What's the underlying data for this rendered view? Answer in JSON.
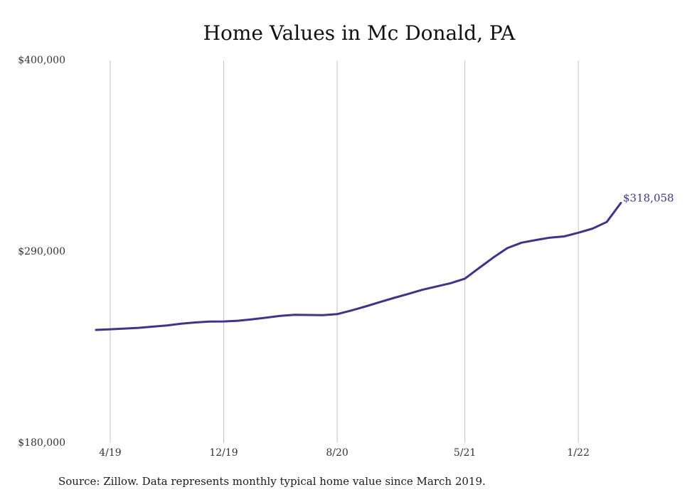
{
  "chart_data": {
    "type": "line",
    "title": "Home Values in Mc Donald, PA",
    "xlabel": "",
    "ylabel": "",
    "ylim": [
      180000,
      400000
    ],
    "y_ticks": [
      {
        "value": 400000,
        "label": "$400,000"
      },
      {
        "value": 290000,
        "label": "$290,000"
      },
      {
        "value": 180000,
        "label": "$180,000"
      }
    ],
    "x_ticks": [
      {
        "x": "2019-04",
        "label": "4/19"
      },
      {
        "x": "2019-12",
        "label": "12/19"
      },
      {
        "x": "2020-08",
        "label": "8/20"
      },
      {
        "x": "2021-05",
        "label": "5/21"
      },
      {
        "x": "2022-01",
        "label": "1/22"
      }
    ],
    "grid": {
      "vertical": true,
      "horizontal": false
    },
    "series": [
      {
        "name": "",
        "color": "#3b3494",
        "points": [
          {
            "x": "2019-03",
            "y": 245000
          },
          {
            "x": "2019-04",
            "y": 245400
          },
          {
            "x": "2019-05",
            "y": 245800
          },
          {
            "x": "2019-06",
            "y": 246200
          },
          {
            "x": "2019-07",
            "y": 246900
          },
          {
            "x": "2019-08",
            "y": 247600
          },
          {
            "x": "2019-09",
            "y": 248600
          },
          {
            "x": "2019-10",
            "y": 249300
          },
          {
            "x": "2019-11",
            "y": 249800
          },
          {
            "x": "2019-12",
            "y": 249900
          },
          {
            "x": "2020-01",
            "y": 250300
          },
          {
            "x": "2020-02",
            "y": 251100
          },
          {
            "x": "2020-03",
            "y": 252100
          },
          {
            "x": "2020-04",
            "y": 253100
          },
          {
            "x": "2020-05",
            "y": 253700
          },
          {
            "x": "2020-06",
            "y": 253600
          },
          {
            "x": "2020-07",
            "y": 253500
          },
          {
            "x": "2020-08",
            "y": 254100
          },
          {
            "x": "2020-09",
            "y": 256200
          },
          {
            "x": "2020-10",
            "y": 258500
          },
          {
            "x": "2020-11",
            "y": 261000
          },
          {
            "x": "2020-12",
            "y": 263400
          },
          {
            "x": "2021-01",
            "y": 265700
          },
          {
            "x": "2021-02",
            "y": 268100
          },
          {
            "x": "2021-03",
            "y": 270000
          },
          {
            "x": "2021-04",
            "y": 271900
          },
          {
            "x": "2021-05",
            "y": 274500
          },
          {
            "x": "2021-06",
            "y": 280600
          },
          {
            "x": "2021-07",
            "y": 286600
          },
          {
            "x": "2021-08",
            "y": 292100
          },
          {
            "x": "2021-09",
            "y": 295200
          },
          {
            "x": "2021-10",
            "y": 296700
          },
          {
            "x": "2021-11",
            "y": 298100
          },
          {
            "x": "2021-12",
            "y": 298800
          },
          {
            "x": "2022-01",
            "y": 300900
          },
          {
            "x": "2022-02",
            "y": 303300
          },
          {
            "x": "2022-03",
            "y": 307100
          },
          {
            "x": "2022-04",
            "y": 318058
          }
        ]
      }
    ],
    "end_label": "$318,058"
  },
  "footnote": "Source: Zillow. Data represents monthly typical home value since March 2019."
}
